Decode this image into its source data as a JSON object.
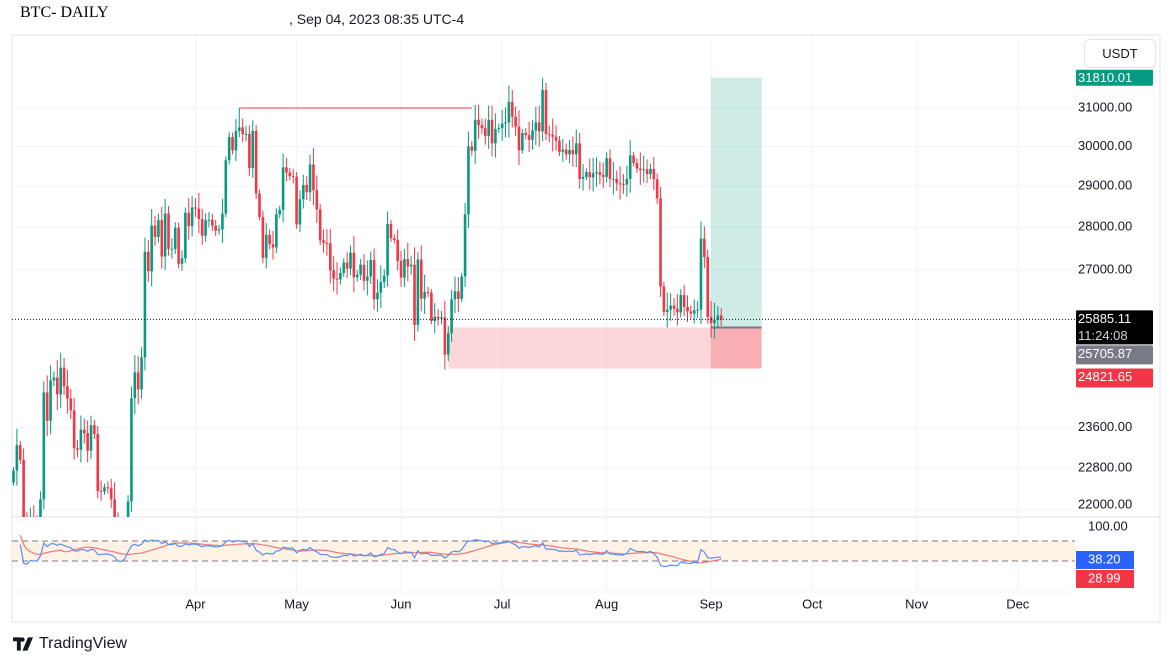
{
  "header": {
    "title": "BTC- DAILY",
    "subtitle": ", Sep 04, 2023 08:35 UTC-4"
  },
  "currency_button": "USDT",
  "branding": {
    "name": "TradingView"
  },
  "colors": {
    "up": "#089981",
    "down": "#f23645",
    "rsi": "#5b8def",
    "rsi_ma": "#f0787c",
    "band": "#fff3e6",
    "grid": "#f0f3fa"
  },
  "chart_data": {
    "type": "candlestick",
    "title": "BTC- DAILY",
    "scale": "log",
    "ylim": [
      21950,
      32600
    ],
    "start_date": "2023-02-06",
    "closes": [
      22750,
      23250,
      22960,
      21800,
      21630,
      21860,
      21790,
      21780,
      22200,
      24320,
      23740,
      24570,
      24630,
      24280,
      24840,
      24450,
      24190,
      23950,
      23190,
      23160,
      23560,
      23490,
      23140,
      23650,
      23470,
      22360,
      22350,
      22430,
      22410,
      22200,
      21700,
      20360,
      20190,
      20630,
      22160,
      24200,
      24740,
      24380,
      25060,
      27420,
      26970,
      28040,
      27770,
      28170,
      27310,
      28330,
      27490,
      27490,
      27990,
      27140,
      27270,
      28350,
      28030,
      28480,
      28450,
      28200,
      27800,
      28170,
      28180,
      28040,
      27920,
      27950,
      28330,
      29650,
      30240,
      29900,
      30400,
      30490,
      30320,
      30320,
      29450,
      30400,
      28820,
      28250,
      27280,
      27820,
      27600,
      27520,
      28310,
      28420,
      29470,
      29340,
      29250,
      29230,
      28070,
      28680,
      29030,
      28850,
      29540,
      28900,
      28430,
      27690,
      27630,
      27620,
      26990,
      26800,
      26780,
      26930,
      27170,
      27030,
      27400,
      26830,
      26890,
      27120,
      26750,
      26850,
      27230,
      26330,
      26480,
      26720,
      26870,
      28080,
      27740,
      27700,
      27210,
      26820,
      27250,
      27080,
      27120,
      25760,
      27240,
      26350,
      26500,
      26480,
      25850,
      25940,
      25900,
      25930,
      25120,
      25580,
      26330,
      26510,
      26340,
      26850,
      28310,
      30000,
      29890,
      30690,
      30550,
      30470,
      30270,
      30690,
      30080,
      30450,
      30470,
      30590,
      30620,
      31160,
      30770,
      30510,
      29900,
      30350,
      30290,
      30170,
      30410,
      30620,
      30390,
      31480,
      30320,
      30300,
      30250,
      30150,
      29860,
      29920,
      29800,
      29910,
      29800,
      30080,
      29180,
      29230,
      29350,
      29220,
      29320,
      29350,
      29280,
      29230,
      29700,
      29180,
      29180,
      29070,
      29050,
      29040,
      29180,
      29770,
      29580,
      29440,
      29400,
      29420,
      29300,
      29430,
      29170,
      28700,
      26620,
      26050,
      26100,
      26190,
      26120,
      26040,
      26430,
      26160,
      26060,
      26010,
      26090,
      26100,
      27730,
      27300,
      25940,
      25800,
      25870,
      25970,
      25885
    ],
    "high_overrides": {
      "67": 31000,
      "157": 31810,
      "204": 28140
    },
    "price_ticks": [
      31000,
      30000,
      29000,
      28000,
      27000,
      23600,
      22800,
      22000
    ],
    "price_tick_labels": [
      "31000.00",
      "30000.00",
      "29000.00",
      "28000.00",
      "27000.00",
      "23600.00",
      "22800.00",
      "22000.00"
    ],
    "time_ticks": [
      {
        "label": "Apr",
        "day": 54
      },
      {
        "label": "May",
        "day": 84
      },
      {
        "label": "Jun",
        "day": 115
      },
      {
        "label": "Jul",
        "day": 145
      },
      {
        "label": "Aug",
        "day": 176
      },
      {
        "label": "Sep",
        "day": 207
      },
      {
        "label": "Oct",
        "day": 237
      },
      {
        "label": "Nov",
        "day": 268
      },
      {
        "label": "Dec",
        "day": 298
      }
    ],
    "last_price": {
      "value": 25885.11,
      "label": "25885.11",
      "countdown": "11:24:08"
    },
    "resistance_line": {
      "price": 31000,
      "from_day": 67,
      "to_day": 136
    },
    "support_zone": {
      "top": 25705.87,
      "bottom": 24821.65,
      "from_day": 129,
      "to_day": 222
    },
    "long_position": {
      "entry": 25705.87,
      "target": 31810.01,
      "stop": 24821.65,
      "from_day": 207,
      "to_day": 222,
      "entry_label": "25705.87",
      "target_label": "31810.01",
      "stop_label": "24821.65"
    },
    "rsi": {
      "period": 14,
      "ma_period": 14,
      "upper": 70,
      "lower": 30,
      "top_label": "100.00",
      "value_label": "38.20",
      "ma_label": "28.99"
    }
  }
}
